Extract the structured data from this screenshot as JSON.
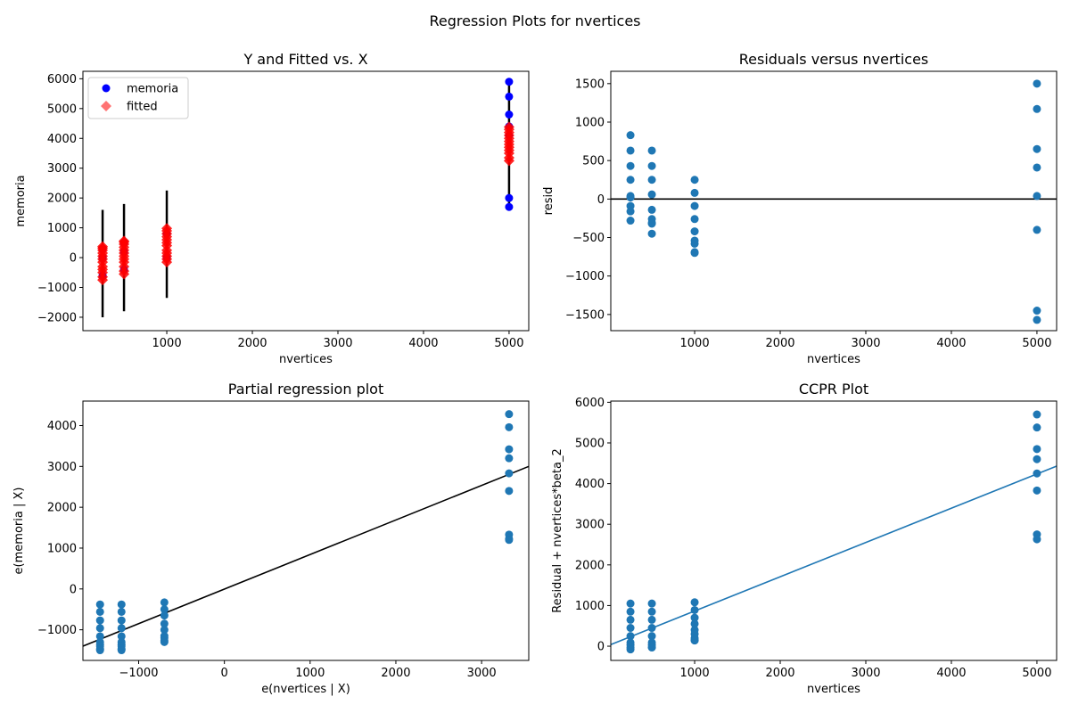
{
  "figure": {
    "title": "Regression Plots for nvertices"
  },
  "colors": {
    "blue_points": "#0000ff",
    "fitted": "#ff0000",
    "tab_blue": "#1f77b4",
    "line_black": "#000000"
  },
  "chart_data": [
    {
      "id": "yfit",
      "type": "scatter",
      "title": "Y and Fitted vs. X",
      "xlabel": "nvertices",
      "ylabel": "memoria",
      "xlim": [
        20,
        5230
      ],
      "ylim": [
        -2450,
        6250
      ],
      "xticks": [
        1000,
        2000,
        3000,
        4000,
        5000
      ],
      "xtick_labels": [
        "1000",
        "2000",
        "3000",
        "4000",
        "5000"
      ],
      "yticks": [
        -2000,
        -1000,
        0,
        1000,
        2000,
        3000,
        4000,
        5000,
        6000
      ],
      "ytick_labels": [
        "−2000",
        "−1000",
        "0",
        "1000",
        "2000",
        "3000",
        "4000",
        "5000",
        "6000"
      ],
      "legend": {
        "position": "upper left",
        "entries": [
          "memoria",
          "fitted"
        ]
      },
      "intervals": [
        {
          "x": 250,
          "low": -2000,
          "high": 1600
        },
        {
          "x": 500,
          "low": -1800,
          "high": 1800
        },
        {
          "x": 1000,
          "low": -1350,
          "high": 2250
        },
        {
          "x": 5000,
          "low": 1700,
          "high": 5900
        }
      ],
      "series": [
        {
          "name": "memoria",
          "x": [
            250,
            250,
            250,
            500,
            500,
            500,
            1000,
            1000,
            5000,
            5000,
            5000,
            5000,
            5000,
            5000,
            5000
          ],
          "y": [
            -600,
            0,
            300,
            -400,
            200,
            500,
            0,
            800,
            1700,
            2000,
            4100,
            4400,
            4800,
            5400,
            5900
          ]
        },
        {
          "name": "fitted",
          "x": [
            250,
            250,
            250,
            250,
            250,
            250,
            250,
            250,
            250,
            250,
            250,
            250,
            500,
            500,
            500,
            500,
            500,
            500,
            500,
            500,
            500,
            500,
            500,
            500,
            1000,
            1000,
            1000,
            1000,
            1000,
            1000,
            1000,
            1000,
            1000,
            1000,
            1000,
            1000,
            5000,
            5000,
            5000,
            5000,
            5000,
            5000,
            5000,
            5000,
            5000,
            5000,
            5000,
            5000
          ],
          "y": [
            -750,
            -650,
            -500,
            -400,
            -300,
            -150,
            -50,
            50,
            150,
            250,
            320,
            370,
            -550,
            -450,
            -300,
            -150,
            -50,
            50,
            150,
            250,
            350,
            450,
            520,
            560,
            -150,
            -50,
            50,
            150,
            250,
            400,
            500,
            600,
            700,
            800,
            900,
            980,
            3250,
            3350,
            3500,
            3600,
            3700,
            3800,
            3900,
            4000,
            4100,
            4200,
            4300,
            4380
          ]
        }
      ]
    },
    {
      "id": "resid",
      "type": "scatter",
      "title": "Residuals versus nvertices",
      "xlabel": "nvertices",
      "ylabel": "resid",
      "xlim": [
        20,
        5230
      ],
      "ylim": [
        -1710,
        1660
      ],
      "xticks": [
        1000,
        2000,
        3000,
        4000,
        5000
      ],
      "xtick_labels": [
        "1000",
        "2000",
        "3000",
        "4000",
        "5000"
      ],
      "yticks": [
        -1500,
        -1000,
        -500,
        0,
        500,
        1000,
        1500
      ],
      "ytick_labels": [
        "−1500",
        "−1000",
        "−500",
        "0",
        "500",
        "1000",
        "1500"
      ],
      "hline": 0,
      "series": [
        {
          "name": "",
          "x": [
            250,
            250,
            250,
            250,
            250,
            250,
            250,
            250,
            250,
            500,
            500,
            500,
            500,
            500,
            500,
            500,
            500,
            500,
            1000,
            1000,
            1000,
            1000,
            1000,
            1000,
            1000,
            1000,
            1000,
            5000,
            5000,
            5000,
            5000,
            5000,
            5000,
            5000,
            5000
          ],
          "y": [
            830,
            630,
            430,
            250,
            40,
            20,
            -90,
            -160,
            -280,
            630,
            430,
            250,
            60,
            -140,
            -260,
            -310,
            -320,
            -450,
            250,
            80,
            -90,
            -260,
            -420,
            -540,
            -580,
            -690,
            -700,
            1500,
            1170,
            650,
            410,
            40,
            -400,
            -1450,
            -1570
          ]
        }
      ]
    },
    {
      "id": "partreg",
      "type": "scatter",
      "title": "Partial regression plot",
      "xlabel": "e(nvertices | X)",
      "ylabel": "e(memoria | X)",
      "xlim": [
        -1650,
        3550
      ],
      "ylim": [
        -1750,
        4600
      ],
      "xticks": [
        -1000,
        0,
        1000,
        2000,
        3000
      ],
      "xtick_labels": [
        "−1000",
        "0",
        "1000",
        "2000",
        "3000"
      ],
      "yticks": [
        -1000,
        0,
        1000,
        2000,
        3000,
        4000
      ],
      "ytick_labels": [
        "−1000",
        "0",
        "1000",
        "2000",
        "3000",
        "4000"
      ],
      "fit_line": {
        "x": [
          -1650,
          3550
        ],
        "y": [
          -1400,
          3000
        ]
      },
      "series": [
        {
          "name": "",
          "x": [
            -1450,
            -1450,
            -1450,
            -1450,
            -1450,
            -1450,
            -1450,
            -1450,
            -1450,
            -1450,
            -1200,
            -1200,
            -1200,
            -1200,
            -1200,
            -1200,
            -1200,
            -1200,
            -1200,
            -1200,
            -700,
            -700,
            -700,
            -700,
            -700,
            -700,
            -700,
            -700,
            -700,
            3320,
            3320,
            3320,
            3320,
            3320,
            3320,
            3320,
            3320,
            3320
          ],
          "y": [
            -380,
            -560,
            -770,
            -960,
            -1160,
            -1300,
            -1360,
            -1400,
            -1470,
            -1500,
            -380,
            -560,
            -770,
            -960,
            -1160,
            -1300,
            -1360,
            -1400,
            -1470,
            -1500,
            -330,
            -500,
            -650,
            -850,
            -1000,
            -1150,
            -1200,
            -1270,
            -1300,
            4280,
            3960,
            3420,
            3200,
            2830,
            2400,
            1330,
            1230,
            1200
          ]
        }
      ]
    },
    {
      "id": "ccpr",
      "type": "scatter",
      "title": "CCPR Plot",
      "xlabel": "nvertices",
      "ylabel": "Residual + nvertices*beta_2",
      "xlim": [
        20,
        5230
      ],
      "ylim": [
        -350,
        6030
      ],
      "xticks": [
        1000,
        2000,
        3000,
        4000,
        5000
      ],
      "xtick_labels": [
        "1000",
        "2000",
        "3000",
        "4000",
        "5000"
      ],
      "yticks": [
        0,
        1000,
        2000,
        3000,
        4000,
        5000,
        6000
      ],
      "ytick_labels": [
        "0",
        "1000",
        "2000",
        "3000",
        "4000",
        "5000",
        "6000"
      ],
      "fit_line": {
        "x": [
          20,
          5230
        ],
        "y": [
          40,
          4430
        ]
      },
      "series": [
        {
          "name": "",
          "x": [
            250,
            250,
            250,
            250,
            250,
            250,
            250,
            250,
            250,
            500,
            500,
            500,
            500,
            500,
            500,
            500,
            500,
            500,
            1000,
            1000,
            1000,
            1000,
            1000,
            1000,
            1000,
            1000,
            1000,
            5000,
            5000,
            5000,
            5000,
            5000,
            5000,
            5000,
            5000
          ],
          "y": [
            1050,
            850,
            650,
            450,
            250,
            90,
            30,
            -30,
            -80,
            1050,
            850,
            650,
            450,
            250,
            90,
            30,
            -30,
            -30,
            1080,
            890,
            700,
            550,
            400,
            300,
            200,
            150,
            140,
            5700,
            5380,
            4850,
            4600,
            4250,
            3830,
            2750,
            2630
          ]
        }
      ]
    }
  ]
}
